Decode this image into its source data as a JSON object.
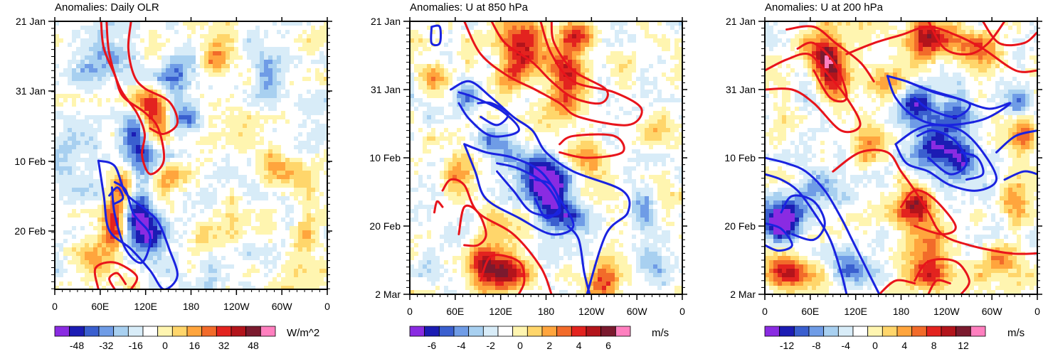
{
  "chart_data": [
    {
      "type": "heatmap",
      "id": "olr",
      "title": "Anomalies: Daily OLR",
      "units": "W/m^2",
      "xlabel": "",
      "ylabel": "",
      "x_ticks": [
        "0",
        "60E",
        "120E",
        "180",
        "120W",
        "60W",
        "0"
      ],
      "y_ticks": [
        "21 Jan",
        "31 Jan",
        "10 Feb",
        "20 Feb"
      ],
      "colorbar_levels": [
        "-48",
        "-32",
        "-16",
        "0",
        "16",
        "32",
        "48"
      ],
      "contours": [
        {
          "color": "red",
          "sign": "positive"
        },
        {
          "color": "blue",
          "sign": "negative"
        }
      ]
    },
    {
      "type": "heatmap",
      "id": "u850",
      "title": "Anomalies: U at 850 hPa",
      "units": "m/s",
      "xlabel": "",
      "ylabel": "",
      "x_ticks": [
        "0",
        "60E",
        "120E",
        "180",
        "120W",
        "60W",
        "0"
      ],
      "y_ticks": [
        "21 Jan",
        "31 Jan",
        "10 Feb",
        "20 Feb",
        "2 Mar"
      ],
      "colorbar_levels": [
        "-6",
        "-4",
        "-2",
        "0",
        "2",
        "4",
        "6"
      ],
      "contours": [
        {
          "color": "red",
          "sign": "positive"
        },
        {
          "color": "blue",
          "sign": "negative"
        }
      ]
    },
    {
      "type": "heatmap",
      "id": "u200",
      "title": "Anomalies: U at 200 hPa",
      "units": "m/s",
      "xlabel": "",
      "ylabel": "",
      "x_ticks": [
        "0",
        "60E",
        "120E",
        "180",
        "120W",
        "60W",
        "0"
      ],
      "y_ticks": [
        "21 Jan",
        "31 Jan",
        "10 Feb",
        "20 Feb",
        "2 Mar"
      ],
      "colorbar_levels": [
        "-12",
        "-8",
        "-4",
        "0",
        "4",
        "8",
        "12"
      ],
      "contours": [
        {
          "color": "red",
          "sign": "positive"
        },
        {
          "color": "blue",
          "sign": "negative"
        }
      ]
    }
  ],
  "palette": [
    "#8a2be2",
    "#1c1cb4",
    "#3a5fcf",
    "#6f9ce6",
    "#a8d0f0",
    "#d8ecf8",
    "#ffffff",
    "#fff5b0",
    "#ffd66b",
    "#ffa53d",
    "#f26b2a",
    "#e3231f",
    "#b3141b",
    "#7b1a2e",
    "#ff7fbf"
  ],
  "contour_colors": {
    "red": "#e8141b",
    "blue": "#1a23e0"
  }
}
